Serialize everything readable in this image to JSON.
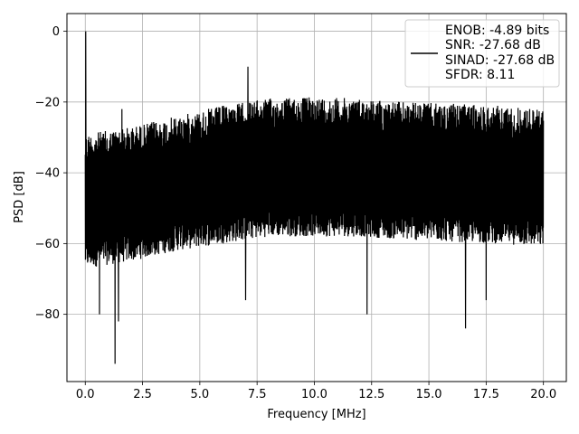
{
  "chart_data": {
    "type": "line",
    "title": "",
    "xlabel": "Frequency [MHz]",
    "ylabel": "PSD [dB]",
    "xlim": [
      -0.8,
      21.0
    ],
    "ylim": [
      -99,
      5
    ],
    "xticks": [
      0.0,
      2.5,
      5.0,
      7.5,
      10.0,
      12.5,
      15.0,
      17.5,
      20.0
    ],
    "xtick_labels": [
      "0.0",
      "2.5",
      "5.0",
      "7.5",
      "10.0",
      "12.5",
      "15.0",
      "17.5",
      "20.0"
    ],
    "yticks": [
      0,
      -20,
      -40,
      -60,
      -80
    ],
    "ytick_labels": [
      "0",
      "−20",
      "−40",
      "−60",
      "−80"
    ],
    "grid": true,
    "legend_position": "top-right",
    "legend_lines": [
      "ENOB: -4.89 bits",
      "SNR: -27.68 dB",
      "SINAD: -27.68 dB",
      "SFDR: 8.11"
    ],
    "line_color": "#000000",
    "noise_band": {
      "upper_envelope": [
        [
          0.0,
          -29
        ],
        [
          2.0,
          -27
        ],
        [
          4.0,
          -24
        ],
        [
          6.0,
          -21
        ],
        [
          8.0,
          -19
        ],
        [
          10.0,
          -18.5
        ],
        [
          12.0,
          -19
        ],
        [
          14.0,
          -20
        ],
        [
          16.0,
          -20.5
        ],
        [
          18.0,
          -21
        ],
        [
          20.0,
          -22
        ]
      ],
      "lower_envelope": [
        [
          0.0,
          -67
        ],
        [
          2.0,
          -65
        ],
        [
          4.0,
          -62
        ],
        [
          6.0,
          -60
        ],
        [
          8.0,
          -58
        ],
        [
          10.0,
          -58
        ],
        [
          12.0,
          -58
        ],
        [
          14.0,
          -59
        ],
        [
          16.0,
          -59.5
        ],
        [
          18.0,
          -60
        ],
        [
          20.0,
          -61
        ]
      ]
    },
    "spikes": [
      {
        "x": 0.02,
        "y": 0
      },
      {
        "x": 1.6,
        "y": -22
      },
      {
        "x": 7.1,
        "y": -10
      },
      {
        "x": 1.3,
        "y": -94
      },
      {
        "x": 1.45,
        "y": -82
      },
      {
        "x": 0.62,
        "y": -80
      },
      {
        "x": 7.0,
        "y": -76
      },
      {
        "x": 12.3,
        "y": -80
      },
      {
        "x": 16.6,
        "y": -84
      },
      {
        "x": 17.5,
        "y": -76
      }
    ]
  }
}
